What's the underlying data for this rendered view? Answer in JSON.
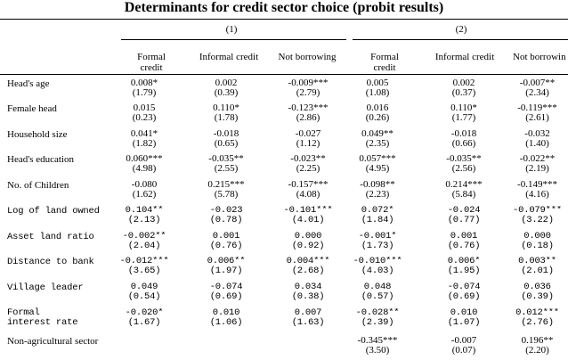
{
  "title": "Determinants for credit sector choice (probit results)",
  "spec_labels": [
    "(1)",
    "(2)"
  ],
  "columns": [
    "Formal credit",
    "Informal credit",
    "Not borrowing",
    "Formal credit",
    "Informal credit",
    "Not borrowin"
  ],
  "rows": [
    {
      "label": "Head's age",
      "style": "serif",
      "cells": [
        [
          "0.008*",
          "(1.79)"
        ],
        [
          "0.002",
          "(0.39)"
        ],
        [
          "-0.009***",
          "(2.79)"
        ],
        [
          "0.005",
          "(1.08)"
        ],
        [
          "0.002",
          "(0.37)"
        ],
        [
          "-0.007**",
          "(2.34)"
        ]
      ]
    },
    {
      "label": "Female head",
      "style": "serif",
      "cells": [
        [
          "0.015",
          "(0.23)"
        ],
        [
          "0.110*",
          "(1.78)"
        ],
        [
          "-0.123***",
          "(2.86)"
        ],
        [
          "0.016",
          "(0.26)"
        ],
        [
          "0.110*",
          "(1.77)"
        ],
        [
          "-0.119***",
          "(2.61)"
        ]
      ]
    },
    {
      "label": "Household size",
      "style": "serif",
      "cells": [
        [
          "0.041*",
          "(1.82)"
        ],
        [
          "-0.018",
          "(0.65)"
        ],
        [
          "-0.027",
          "(1.12)"
        ],
        [
          "0.049**",
          "(2.35)"
        ],
        [
          "-0.018",
          "(0.66)"
        ],
        [
          "-0.032",
          "(1.40)"
        ]
      ]
    },
    {
      "label": "Head's education",
      "style": "serif",
      "cells": [
        [
          "0.060***",
          "(4.98)"
        ],
        [
          "-0.035**",
          "(2.55)"
        ],
        [
          "-0.023**",
          "(2.25)"
        ],
        [
          "0.057***",
          "(4.95)"
        ],
        [
          "-0.035**",
          "(2.56)"
        ],
        [
          "-0.022**",
          "(2.19)"
        ]
      ]
    },
    {
      "label": "No. of Children",
      "style": "serif",
      "cells": [
        [
          "-0.080",
          "(1.62)"
        ],
        [
          "0.215***",
          "(5.78)"
        ],
        [
          "-0.157***",
          "(4.08)"
        ],
        [
          "-0.098**",
          "(2.23)"
        ],
        [
          "0.214***",
          "(5.84)"
        ],
        [
          "-0.149***",
          "(4.16)"
        ]
      ]
    },
    {
      "label": "Log of land owned",
      "style": "mono",
      "cells": [
        [
          "0.104**",
          "(2.13)"
        ],
        [
          "-0.023",
          "(0.78)"
        ],
        [
          "-0.101***",
          "(4.01)"
        ],
        [
          "0.072*",
          "(1.84)"
        ],
        [
          "-0.024",
          "(0.77)"
        ],
        [
          "-0.079***",
          "(3.22)"
        ]
      ]
    },
    {
      "label": "Asset land ratio",
      "style": "mono",
      "cells": [
        [
          "-0.002**",
          "(2.04)"
        ],
        [
          "0.001",
          "(0.76)"
        ],
        [
          "0.000",
          "(0.92)"
        ],
        [
          "-0.001*",
          "(1.73)"
        ],
        [
          "0.001",
          "(0.76)"
        ],
        [
          "0.000",
          "(0.18)"
        ]
      ]
    },
    {
      "label": "Distance to bank",
      "style": "mono",
      "cells": [
        [
          "-0.012***",
          "(3.65)"
        ],
        [
          "0.006**",
          "(1.97)"
        ],
        [
          "0.004***",
          "(2.68)"
        ],
        [
          "-0.010***",
          "(4.03)"
        ],
        [
          "0.006*",
          "(1.95)"
        ],
        [
          "0.003**",
          "(2.01)"
        ]
      ]
    },
    {
      "label": "Village leader",
      "style": "mono",
      "cells": [
        [
          "0.049",
          "(0.54)"
        ],
        [
          "-0.074",
          "(0.69)"
        ],
        [
          "0.034",
          "(0.38)"
        ],
        [
          "0.048",
          "(0.57)"
        ],
        [
          "-0.074",
          "(0.69)"
        ],
        [
          "0.036",
          "(0.39)"
        ]
      ]
    },
    {
      "label": "Formal interest rate",
      "style": "mono",
      "cells": [
        [
          "-0.020*",
          "(1.67)"
        ],
        [
          "0.010",
          "(1.06)"
        ],
        [
          "0.007",
          "(1.63)"
        ],
        [
          "-0.028**",
          "(2.39)"
        ],
        [
          "0.010",
          "(1.07)"
        ],
        [
          "0.012***",
          "(2.76)"
        ]
      ]
    },
    {
      "label": "Non-agricultural sector",
      "style": "serif",
      "cells": [
        [
          "",
          ""
        ],
        [
          "",
          ""
        ],
        [
          "",
          ""
        ],
        [
          "-0.345***",
          "(3.50)"
        ],
        [
          "-0.007",
          "(0.07)"
        ],
        [
          "0.196**",
          "(2.20)"
        ]
      ]
    }
  ]
}
